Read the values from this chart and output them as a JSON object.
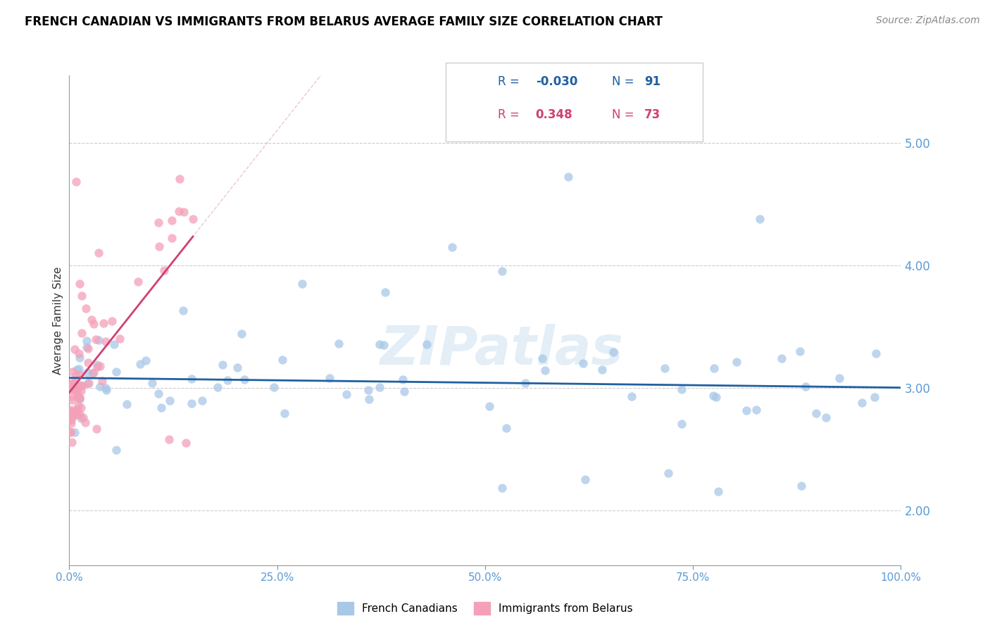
{
  "title": "FRENCH CANADIAN VS IMMIGRANTS FROM BELARUS AVERAGE FAMILY SIZE CORRELATION CHART",
  "source": "Source: ZipAtlas.com",
  "ylabel": "Average Family Size",
  "xlim": [
    0,
    100
  ],
  "ylim": [
    1.55,
    5.55
  ],
  "yticks": [
    2.0,
    3.0,
    4.0,
    5.0
  ],
  "xticks": [
    0,
    25,
    50,
    75,
    100
  ],
  "xtick_labels": [
    "0.0%",
    "25.0%",
    "50.0%",
    "75.0%",
    "100.0%"
  ],
  "blue_scatter_color": "#a8c8e8",
  "pink_scatter_color": "#f4a0b8",
  "blue_line_color": "#2060a0",
  "pink_line_color": "#d04070",
  "axis_tick_color": "#5b9bd5",
  "grid_color": "#cccccc",
  "legend_R_blue": "-0.030",
  "legend_N_blue": "91",
  "legend_R_pink": "0.348",
  "legend_N_pink": "73",
  "legend_label_blue": "French Canadians",
  "legend_label_pink": "Immigrants from Belarus",
  "watermark": "ZIPatlas",
  "marker_size": 80,
  "marker_linewidth": 1.0
}
